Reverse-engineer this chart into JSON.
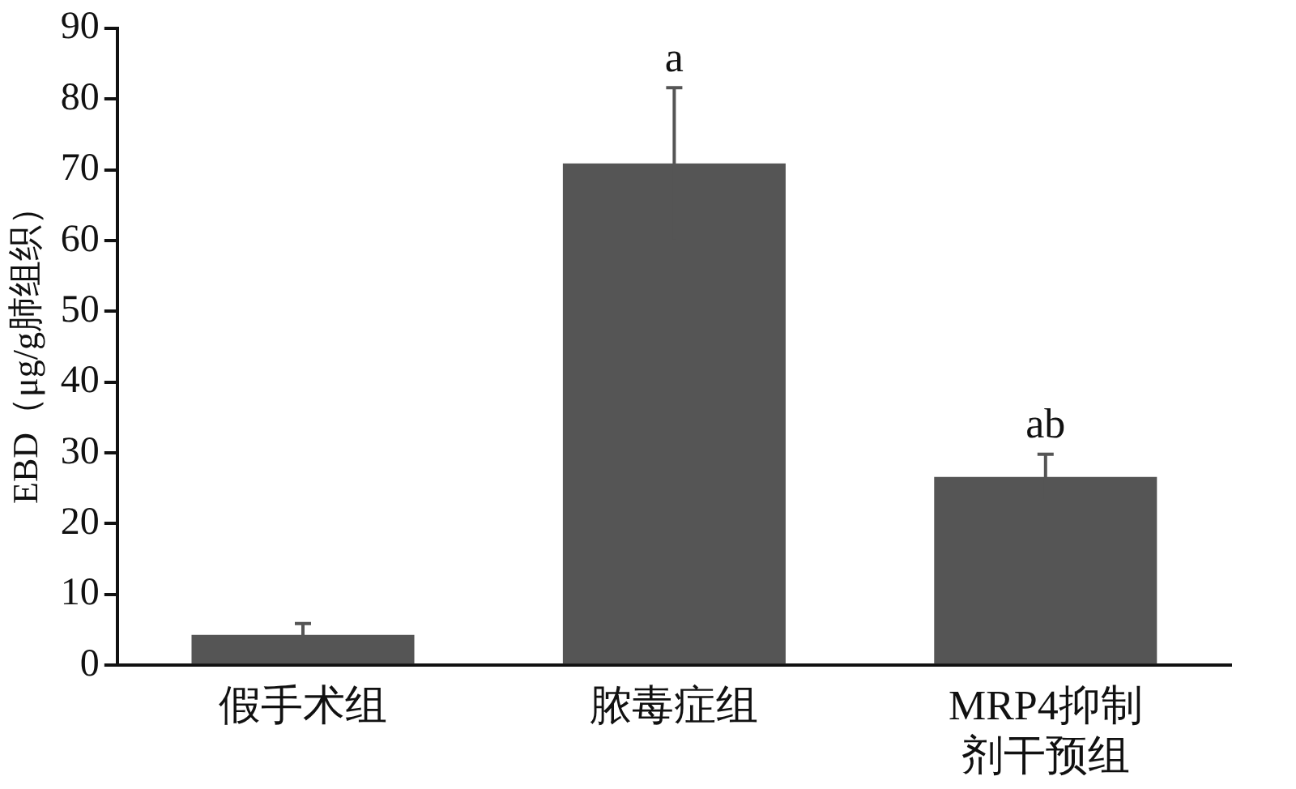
{
  "chart_data": {
    "type": "bar",
    "ylabel": "EBD（μg/g肺组织）",
    "categories": [
      "假手术组",
      "脓毒症组",
      "MRP4抑制剂干预组"
    ],
    "values": [
      4.3,
      70.9,
      26.6
    ],
    "errors": [
      1.6,
      10.7,
      3.2
    ],
    "color": "#555555",
    "ylim": [
      0,
      90
    ],
    "yticks": [
      0,
      10,
      20,
      30,
      40,
      50,
      60,
      70,
      80,
      90
    ],
    "grid": false,
    "legend": false,
    "annotations": [
      {
        "text": "a",
        "x": "脓毒症组",
        "y": 81.6
      },
      {
        "text": "ab",
        "x": "MRP4抑制剂干预组",
        "y": 29.8
      }
    ]
  }
}
